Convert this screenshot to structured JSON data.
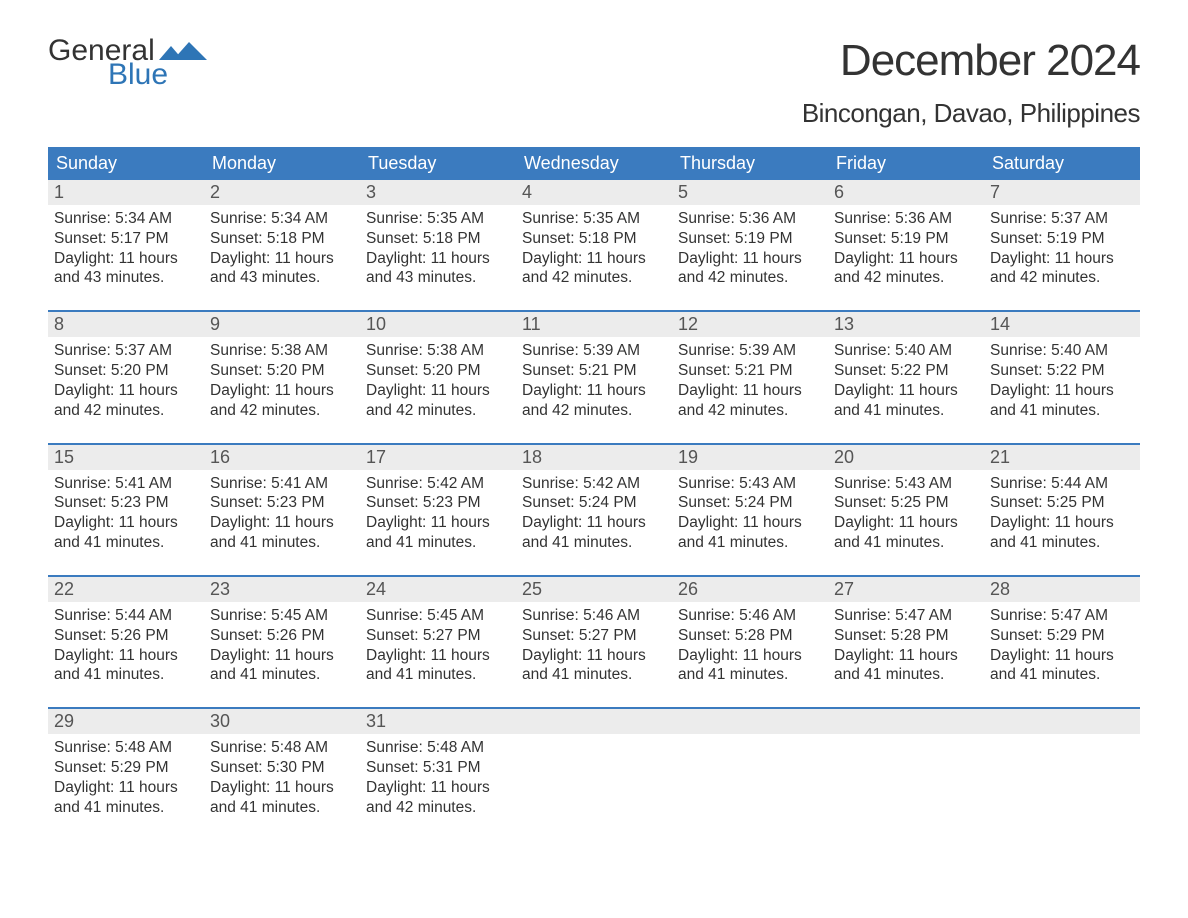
{
  "logo": {
    "word1": "General",
    "word2": "Blue"
  },
  "title": "December 2024",
  "location": "Bincongan, Davao, Philippines",
  "colors": {
    "header_bg": "#3b7bbf",
    "header_text": "#ffffff",
    "daynum_bg": "#ececec",
    "week_border": "#3b7bbf",
    "body_text": "#333333",
    "logo_blue": "#2e75b6",
    "background": "#ffffff"
  },
  "typography": {
    "title_fontsize": 44,
    "location_fontsize": 26,
    "dayheader_fontsize": 18,
    "daynum_fontsize": 18,
    "body_fontsize": 15.5,
    "logo_fontsize": 30
  },
  "day_headers": [
    "Sunday",
    "Monday",
    "Tuesday",
    "Wednesday",
    "Thursday",
    "Friday",
    "Saturday"
  ],
  "labels": {
    "sunrise": "Sunrise:",
    "sunset": "Sunset:",
    "daylight": "Daylight:"
  },
  "weeks": [
    [
      {
        "n": "1",
        "sunrise": "5:34 AM",
        "sunset": "5:17 PM",
        "daylight1": "11 hours",
        "daylight2": "and 43 minutes."
      },
      {
        "n": "2",
        "sunrise": "5:34 AM",
        "sunset": "5:18 PM",
        "daylight1": "11 hours",
        "daylight2": "and 43 minutes."
      },
      {
        "n": "3",
        "sunrise": "5:35 AM",
        "sunset": "5:18 PM",
        "daylight1": "11 hours",
        "daylight2": "and 43 minutes."
      },
      {
        "n": "4",
        "sunrise": "5:35 AM",
        "sunset": "5:18 PM",
        "daylight1": "11 hours",
        "daylight2": "and 42 minutes."
      },
      {
        "n": "5",
        "sunrise": "5:36 AM",
        "sunset": "5:19 PM",
        "daylight1": "11 hours",
        "daylight2": "and 42 minutes."
      },
      {
        "n": "6",
        "sunrise": "5:36 AM",
        "sunset": "5:19 PM",
        "daylight1": "11 hours",
        "daylight2": "and 42 minutes."
      },
      {
        "n": "7",
        "sunrise": "5:37 AM",
        "sunset": "5:19 PM",
        "daylight1": "11 hours",
        "daylight2": "and 42 minutes."
      }
    ],
    [
      {
        "n": "8",
        "sunrise": "5:37 AM",
        "sunset": "5:20 PM",
        "daylight1": "11 hours",
        "daylight2": "and 42 minutes."
      },
      {
        "n": "9",
        "sunrise": "5:38 AM",
        "sunset": "5:20 PM",
        "daylight1": "11 hours",
        "daylight2": "and 42 minutes."
      },
      {
        "n": "10",
        "sunrise": "5:38 AM",
        "sunset": "5:20 PM",
        "daylight1": "11 hours",
        "daylight2": "and 42 minutes."
      },
      {
        "n": "11",
        "sunrise": "5:39 AM",
        "sunset": "5:21 PM",
        "daylight1": "11 hours",
        "daylight2": "and 42 minutes."
      },
      {
        "n": "12",
        "sunrise": "5:39 AM",
        "sunset": "5:21 PM",
        "daylight1": "11 hours",
        "daylight2": "and 42 minutes."
      },
      {
        "n": "13",
        "sunrise": "5:40 AM",
        "sunset": "5:22 PM",
        "daylight1": "11 hours",
        "daylight2": "and 41 minutes."
      },
      {
        "n": "14",
        "sunrise": "5:40 AM",
        "sunset": "5:22 PM",
        "daylight1": "11 hours",
        "daylight2": "and 41 minutes."
      }
    ],
    [
      {
        "n": "15",
        "sunrise": "5:41 AM",
        "sunset": "5:23 PM",
        "daylight1": "11 hours",
        "daylight2": "and 41 minutes."
      },
      {
        "n": "16",
        "sunrise": "5:41 AM",
        "sunset": "5:23 PM",
        "daylight1": "11 hours",
        "daylight2": "and 41 minutes."
      },
      {
        "n": "17",
        "sunrise": "5:42 AM",
        "sunset": "5:23 PM",
        "daylight1": "11 hours",
        "daylight2": "and 41 minutes."
      },
      {
        "n": "18",
        "sunrise": "5:42 AM",
        "sunset": "5:24 PM",
        "daylight1": "11 hours",
        "daylight2": "and 41 minutes."
      },
      {
        "n": "19",
        "sunrise": "5:43 AM",
        "sunset": "5:24 PM",
        "daylight1": "11 hours",
        "daylight2": "and 41 minutes."
      },
      {
        "n": "20",
        "sunrise": "5:43 AM",
        "sunset": "5:25 PM",
        "daylight1": "11 hours",
        "daylight2": "and 41 minutes."
      },
      {
        "n": "21",
        "sunrise": "5:44 AM",
        "sunset": "5:25 PM",
        "daylight1": "11 hours",
        "daylight2": "and 41 minutes."
      }
    ],
    [
      {
        "n": "22",
        "sunrise": "5:44 AM",
        "sunset": "5:26 PM",
        "daylight1": "11 hours",
        "daylight2": "and 41 minutes."
      },
      {
        "n": "23",
        "sunrise": "5:45 AM",
        "sunset": "5:26 PM",
        "daylight1": "11 hours",
        "daylight2": "and 41 minutes."
      },
      {
        "n": "24",
        "sunrise": "5:45 AM",
        "sunset": "5:27 PM",
        "daylight1": "11 hours",
        "daylight2": "and 41 minutes."
      },
      {
        "n": "25",
        "sunrise": "5:46 AM",
        "sunset": "5:27 PM",
        "daylight1": "11 hours",
        "daylight2": "and 41 minutes."
      },
      {
        "n": "26",
        "sunrise": "5:46 AM",
        "sunset": "5:28 PM",
        "daylight1": "11 hours",
        "daylight2": "and 41 minutes."
      },
      {
        "n": "27",
        "sunrise": "5:47 AM",
        "sunset": "5:28 PM",
        "daylight1": "11 hours",
        "daylight2": "and 41 minutes."
      },
      {
        "n": "28",
        "sunrise": "5:47 AM",
        "sunset": "5:29 PM",
        "daylight1": "11 hours",
        "daylight2": "and 41 minutes."
      }
    ],
    [
      {
        "n": "29",
        "sunrise": "5:48 AM",
        "sunset": "5:29 PM",
        "daylight1": "11 hours",
        "daylight2": "and 41 minutes."
      },
      {
        "n": "30",
        "sunrise": "5:48 AM",
        "sunset": "5:30 PM",
        "daylight1": "11 hours",
        "daylight2": "and 41 minutes."
      },
      {
        "n": "31",
        "sunrise": "5:48 AM",
        "sunset": "5:31 PM",
        "daylight1": "11 hours",
        "daylight2": "and 42 minutes."
      },
      null,
      null,
      null,
      null
    ]
  ]
}
